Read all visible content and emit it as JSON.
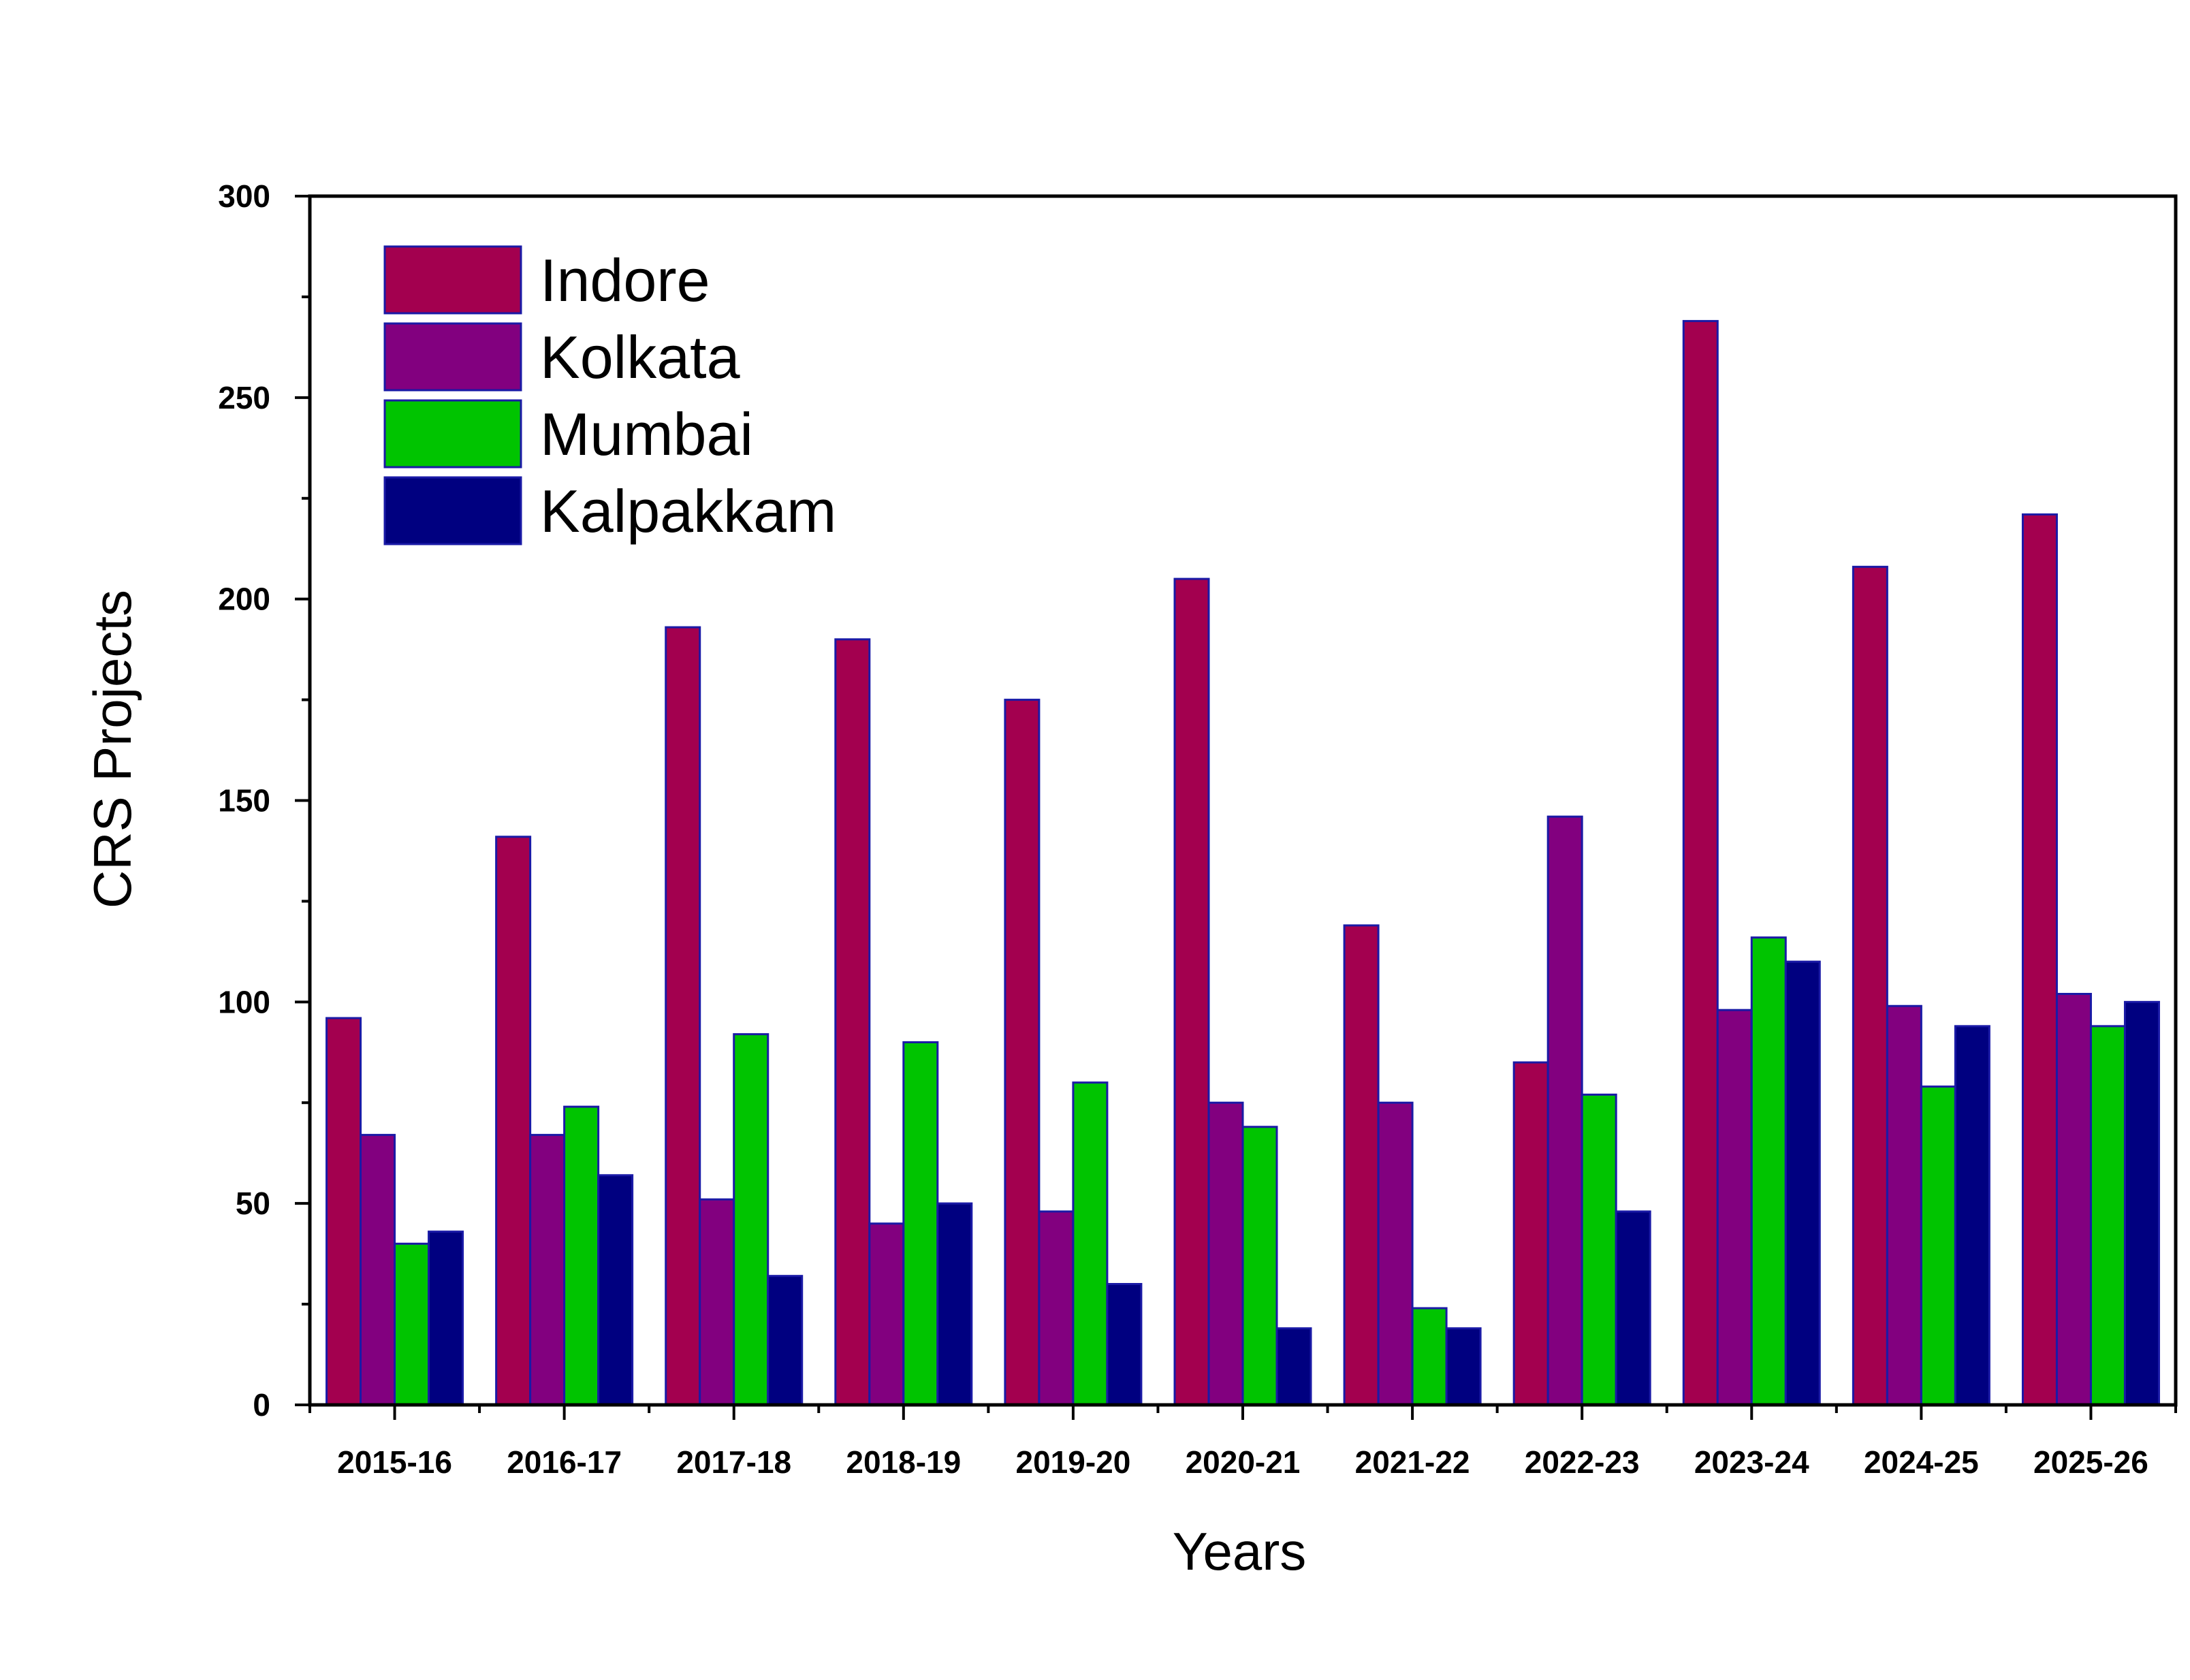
{
  "chart_data": {
    "type": "bar",
    "xlabel": "Years",
    "ylabel": "CRS Projects",
    "ylim": [
      0,
      300
    ],
    "yticks": [
      0,
      50,
      100,
      150,
      200,
      250,
      300
    ],
    "grid": false,
    "legend_position": "top-left",
    "categories": [
      "2015-16",
      "2016-17",
      "2017-18",
      "2018-19",
      "2019-20",
      "2020-21",
      "2021-22",
      "2022-23",
      "2023-24",
      "2024-25",
      "2025-26"
    ],
    "series": [
      {
        "name": "Indore",
        "color": "#A3004F",
        "values": [
          96,
          141,
          193,
          190,
          175,
          205,
          119,
          85,
          269,
          208,
          221
        ]
      },
      {
        "name": "Kolkata",
        "color": "#82007F",
        "values": [
          67,
          67,
          51,
          45,
          48,
          75,
          75,
          146,
          98,
          99,
          102
        ]
      },
      {
        "name": "Mumbai",
        "color": "#00C400",
        "values": [
          40,
          74,
          92,
          90,
          80,
          69,
          24,
          77,
          116,
          79,
          94
        ]
      },
      {
        "name": "Kalpakkam",
        "color": "#000080",
        "values": [
          43,
          57,
          32,
          50,
          30,
          19,
          19,
          48,
          110,
          94,
          100
        ]
      }
    ]
  }
}
